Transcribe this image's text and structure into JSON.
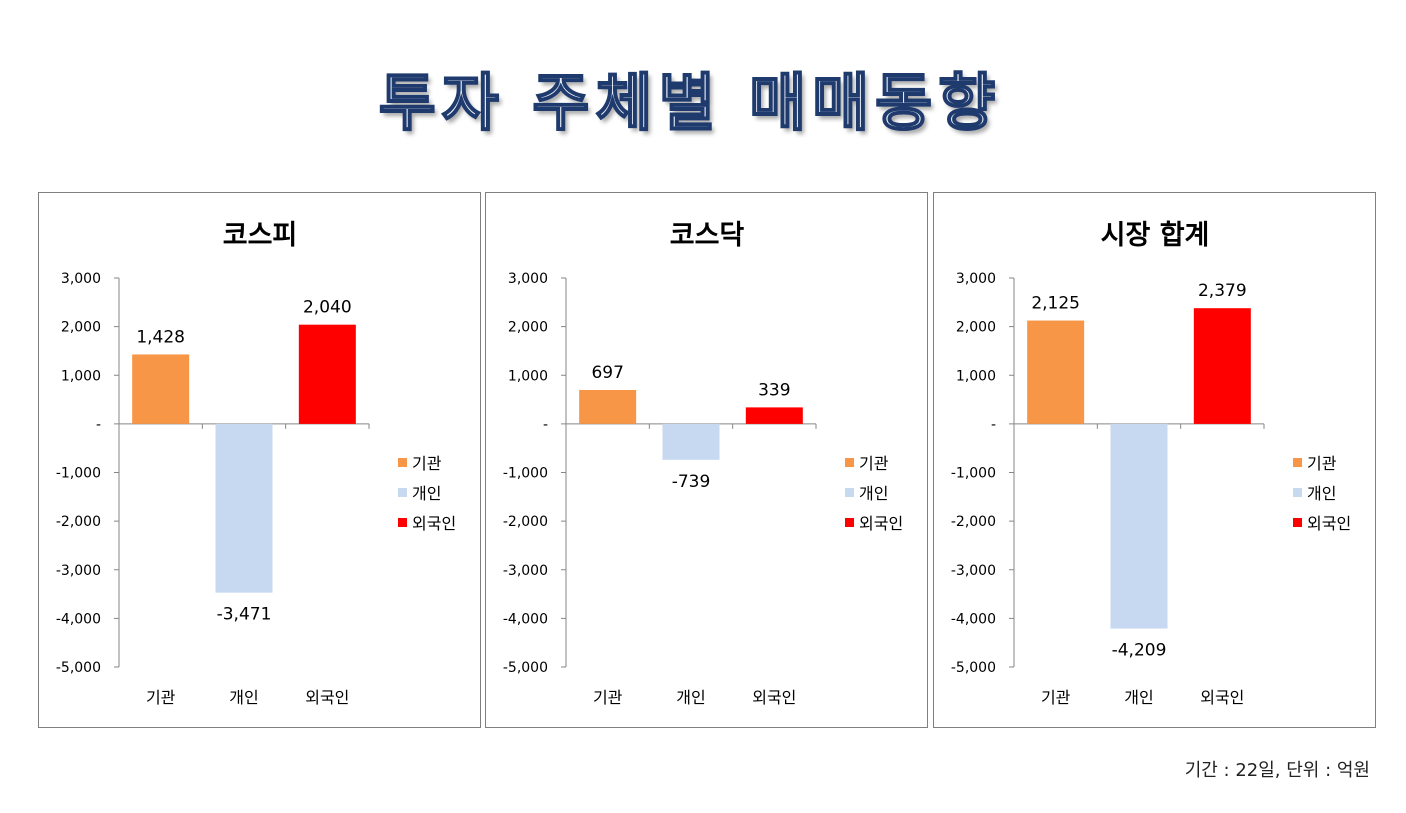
{
  "page": {
    "title": "투자 주체별 매매동향",
    "footnote": "기간 : 22일, 단위 : 억원"
  },
  "colors": {
    "institution": "#f79646",
    "individual": "#c6d9f1",
    "foreigner": "#ff0000",
    "title_fill": "#e9eef6",
    "title_stroke": "#1f3a6d"
  },
  "chart_data": [
    {
      "type": "bar",
      "title": "코스피",
      "categories": [
        "기관",
        "개인",
        "외국인"
      ],
      "values": [
        1428,
        -3471,
        2040
      ],
      "value_labels": [
        "1,428",
        "-3,471",
        "2,040"
      ],
      "ylim": [
        -5000,
        3000
      ],
      "yticks": [
        3000,
        2000,
        1000,
        0,
        -1000,
        -2000,
        -3000,
        -4000,
        -5000
      ],
      "ytick_labels": [
        "3,000",
        "2,000",
        "1,000",
        "-",
        "-1,000",
        "-2,000",
        "-3,000",
        "-4,000",
        "-5,000"
      ],
      "legend": [
        "기관",
        "개인",
        "외국인"
      ],
      "legend_position": "right",
      "grid": false
    },
    {
      "type": "bar",
      "title": "코스닥",
      "categories": [
        "기관",
        "개인",
        "외국인"
      ],
      "values": [
        697,
        -739,
        339
      ],
      "value_labels": [
        "697",
        "-739",
        "339"
      ],
      "ylim": [
        -5000,
        3000
      ],
      "yticks": [
        3000,
        2000,
        1000,
        0,
        -1000,
        -2000,
        -3000,
        -4000,
        -5000
      ],
      "ytick_labels": [
        "3,000",
        "2,000",
        "1,000",
        "-",
        "-1,000",
        "-2,000",
        "-3,000",
        "-4,000",
        "-5,000"
      ],
      "legend": [
        "기관",
        "개인",
        "외국인"
      ],
      "legend_position": "right",
      "grid": false
    },
    {
      "type": "bar",
      "title": "시장 합계",
      "categories": [
        "기관",
        "개인",
        "외국인"
      ],
      "values": [
        2125,
        -4209,
        2379
      ],
      "value_labels": [
        "2,125",
        "-4,209",
        "2,379"
      ],
      "ylim": [
        -5000,
        3000
      ],
      "yticks": [
        3000,
        2000,
        1000,
        0,
        -1000,
        -2000,
        -3000,
        -4000,
        -5000
      ],
      "ytick_labels": [
        "3,000",
        "2,000",
        "1,000",
        "-",
        "-1,000",
        "-2,000",
        "-3,000",
        "-4,000",
        "-5,000"
      ],
      "legend": [
        "기관",
        "개인",
        "외국인"
      ],
      "legend_position": "right",
      "grid": false
    }
  ]
}
